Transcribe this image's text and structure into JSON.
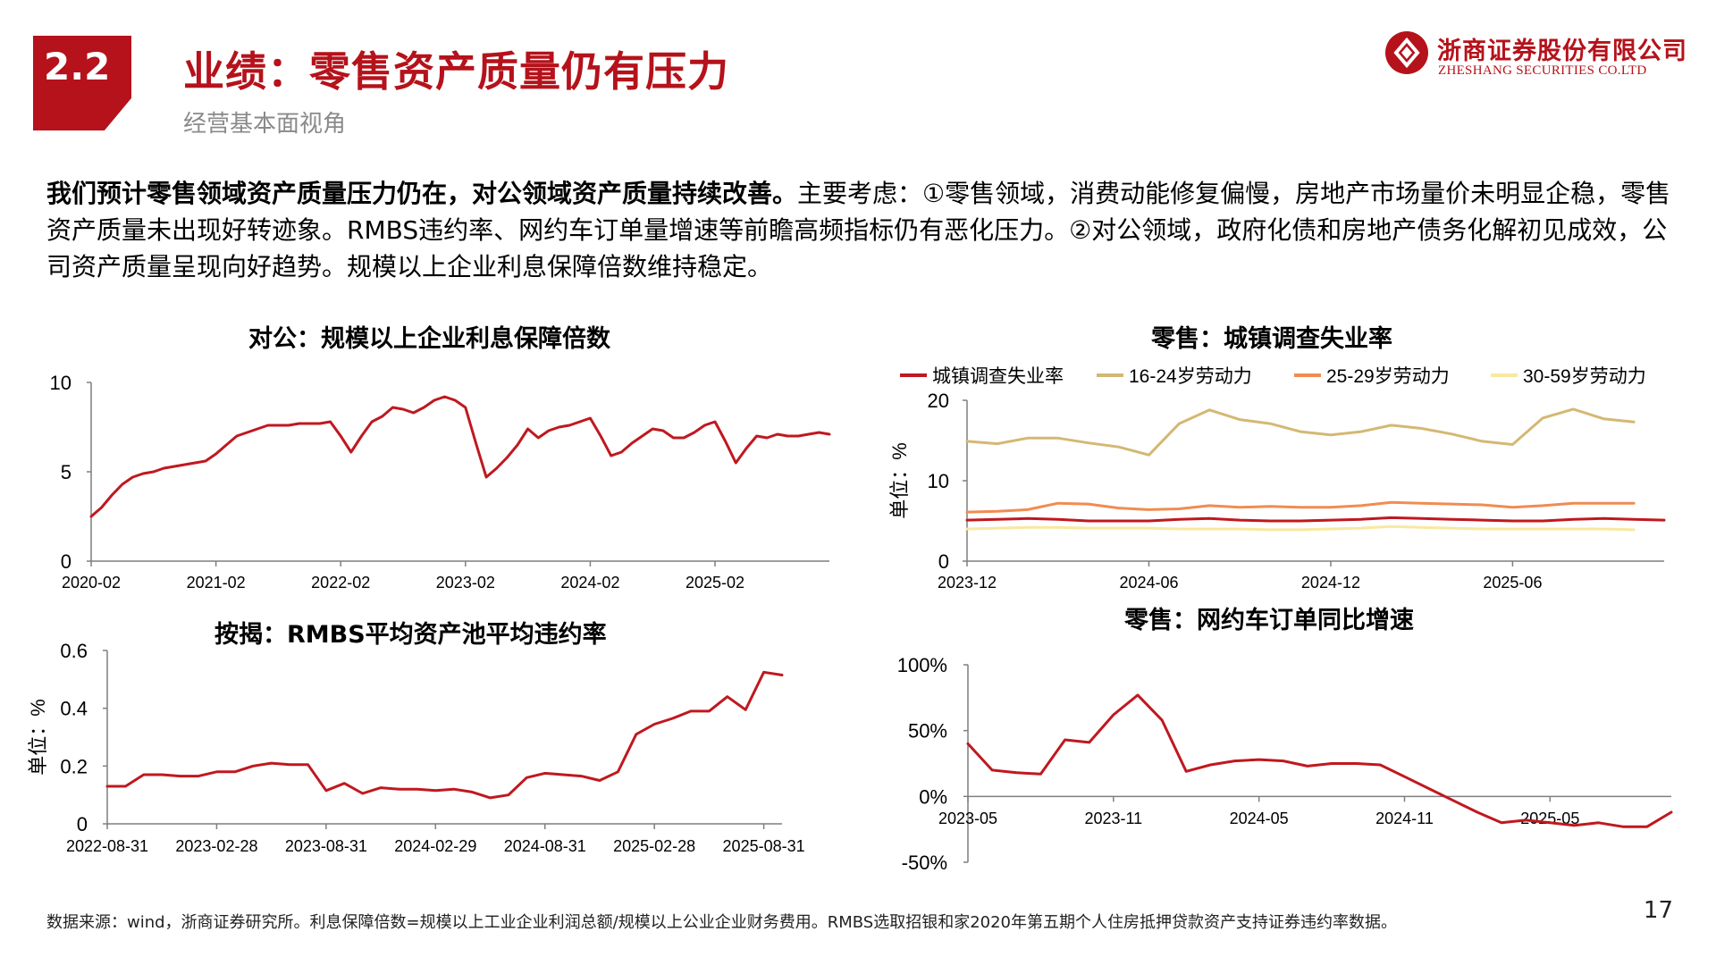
{
  "header": {
    "section_number": "2.2",
    "title": "业绩：零售资产质量仍有压力",
    "subtitle": "经营基本面视角",
    "logo_cn": "浙商证券股份有限公司",
    "logo_en": "ZHESHANG SECURITIES CO.LTD"
  },
  "summary": {
    "bold": "我们预计零售领域资产质量压力仍在，对公领域资产质量持续改善。",
    "text": "主要考虑：①零售领域，消费动能修复偏慢，房地产市场量价未明显企稳，零售资产质量未出现好转迹象。RMBS违约率、网约车订单量增速等前瞻高频指标仍有恶化压力。②对公领域，政府化债和房地产债务化解初见成效，公司资产质量呈现向好趋势。规模以上企业利息保障倍数维持稳定。"
  },
  "footer": {
    "source": "数据来源：wind，浙商证券研究所。利息保障倍数=规模以上工业企业利润总额/规模以上公业企业财务费用。RMBS选取招银和家2020年第五期个人住房抵押贷款资产支持证券违约率数据。",
    "page": "17"
  },
  "colors": {
    "brand_red": "#b5121b",
    "line_red": "#c0181f",
    "tan": "#d4b873",
    "orange": "#f08c52",
    "pale_yellow": "#f8e8a0"
  },
  "chart_data": [
    {
      "id": "interest",
      "type": "line",
      "title": "对公：规模以上企业利息保障倍数",
      "ylim": [
        0,
        10
      ],
      "yticks": [
        "0",
        "5",
        "10"
      ],
      "xticks": [
        "2020-02",
        "2021-02",
        "2022-02",
        "2023-02",
        "2024-02",
        "2025-02"
      ],
      "series": [
        {
          "color": "#c0181f",
          "points": [
            [
              0,
              2.5
            ],
            [
              1,
              3.0
            ],
            [
              2,
              3.7
            ],
            [
              3,
              4.3
            ],
            [
              4,
              4.7
            ],
            [
              5,
              4.9
            ],
            [
              6,
              5.0
            ],
            [
              7,
              5.2
            ],
            [
              8,
              5.3
            ],
            [
              9,
              5.4
            ],
            [
              10,
              5.5
            ],
            [
              11,
              5.6
            ],
            [
              12,
              6.0
            ],
            [
              13,
              6.5
            ],
            [
              14,
              7.0
            ],
            [
              15,
              7.2
            ],
            [
              16,
              7.4
            ],
            [
              17,
              7.6
            ],
            [
              18,
              7.6
            ],
            [
              19,
              7.6
            ],
            [
              20,
              7.7
            ],
            [
              21,
              7.7
            ],
            [
              22,
              7.7
            ],
            [
              23,
              7.8
            ],
            [
              24,
              7.0
            ],
            [
              25,
              6.1
            ],
            [
              26,
              7.0
            ],
            [
              27,
              7.8
            ],
            [
              28,
              8.1
            ],
            [
              29,
              8.6
            ],
            [
              30,
              8.5
            ],
            [
              31,
              8.3
            ],
            [
              32,
              8.6
            ],
            [
              33,
              9.0
            ],
            [
              34,
              9.2
            ],
            [
              35,
              9.0
            ],
            [
              36,
              8.6
            ],
            [
              37,
              6.6
            ],
            [
              38,
              4.7
            ],
            [
              39,
              5.2
            ],
            [
              40,
              5.8
            ],
            [
              41,
              6.5
            ],
            [
              42,
              7.4
            ],
            [
              43,
              6.9
            ],
            [
              44,
              7.3
            ],
            [
              45,
              7.5
            ],
            [
              46,
              7.6
            ],
            [
              47,
              7.8
            ],
            [
              48,
              8.0
            ],
            [
              49,
              7.0
            ],
            [
              50,
              5.9
            ],
            [
              51,
              6.1
            ],
            [
              52,
              6.6
            ],
            [
              53,
              7.0
            ],
            [
              54,
              7.4
            ],
            [
              55,
              7.3
            ],
            [
              56,
              6.9
            ],
            [
              57,
              6.9
            ],
            [
              58,
              7.2
            ],
            [
              59,
              7.6
            ],
            [
              60,
              7.8
            ],
            [
              61,
              6.7
            ],
            [
              62,
              5.5
            ],
            [
              63,
              6.3
            ],
            [
              64,
              7.0
            ],
            [
              65,
              6.9
            ],
            [
              66,
              7.1
            ],
            [
              67,
              7.0
            ],
            [
              68,
              7.0
            ],
            [
              69,
              7.1
            ],
            [
              70,
              7.2
            ],
            [
              71,
              7.1
            ]
          ]
        }
      ]
    },
    {
      "id": "rmbs",
      "type": "line",
      "title": "按揭：RMBS平均资产池平均违约率",
      "ylabel": "单位：%",
      "ylim": [
        0,
        0.6
      ],
      "yticks": [
        "0",
        "0.2",
        "0.4",
        "0.6"
      ],
      "xticks": [
        "2022-08-31",
        "2023-02-28",
        "2023-08-31",
        "2024-02-29",
        "2024-08-31",
        "2025-02-28",
        "2025-08-31"
      ],
      "series": [
        {
          "color": "#c0181f",
          "points": [
            [
              0,
              0.13
            ],
            [
              1,
              0.13
            ],
            [
              2,
              0.17
            ],
            [
              3,
              0.17
            ],
            [
              4,
              0.165
            ],
            [
              5,
              0.165
            ],
            [
              6,
              0.18
            ],
            [
              7,
              0.18
            ],
            [
              8,
              0.2
            ],
            [
              9,
              0.21
            ],
            [
              10,
              0.205
            ],
            [
              11,
              0.205
            ],
            [
              12,
              0.115
            ],
            [
              13,
              0.14
            ],
            [
              14,
              0.105
            ],
            [
              15,
              0.125
            ],
            [
              16,
              0.12
            ],
            [
              17,
              0.12
            ],
            [
              18,
              0.115
            ],
            [
              19,
              0.12
            ],
            [
              20,
              0.11
            ],
            [
              21,
              0.09
            ],
            [
              22,
              0.1
            ],
            [
              23,
              0.16
            ],
            [
              24,
              0.175
            ],
            [
              25,
              0.17
            ],
            [
              26,
              0.165
            ],
            [
              27,
              0.15
            ],
            [
              28,
              0.18
            ],
            [
              29,
              0.31
            ],
            [
              30,
              0.345
            ],
            [
              31,
              0.365
            ],
            [
              32,
              0.39
            ],
            [
              33,
              0.39
            ],
            [
              34,
              0.44
            ],
            [
              35,
              0.395
            ],
            [
              36,
              0.525
            ],
            [
              37,
              0.515
            ]
          ]
        }
      ]
    },
    {
      "id": "unemp",
      "type": "line",
      "title": "零售：城镇调查失业率",
      "ylabel": "单位：%",
      "ylim": [
        0,
        20
      ],
      "yticks": [
        "0",
        "10",
        "20"
      ],
      "xticks": [
        "2023-12",
        "2024-06",
        "2024-12",
        "2025-06"
      ],
      "legend": [
        "城镇调查失业率",
        "16-24岁劳动力",
        "25-29岁劳动力",
        "30-59岁劳动力"
      ],
      "series": [
        {
          "name": "城镇调查失业率",
          "color": "#c0181f",
          "values": [
            5.1,
            5.2,
            5.3,
            5.2,
            5.0,
            5.0,
            5.0,
            5.2,
            5.3,
            5.1,
            5.0,
            5.0,
            5.1,
            5.2,
            5.4,
            5.3,
            5.2,
            5.1,
            5.0,
            5.0,
            5.2,
            5.3,
            5.2,
            5.1
          ]
        },
        {
          "name": "16-24岁劳动力",
          "color": "#d4b873",
          "values": [
            14.9,
            14.6,
            15.3,
            15.3,
            14.7,
            14.2,
            13.2,
            17.1,
            18.8,
            17.6,
            17.1,
            16.1,
            15.7,
            16.1,
            16.9,
            16.5,
            15.8,
            14.9,
            14.5,
            17.8,
            18.9,
            17.7,
            17.3
          ]
        },
        {
          "name": "25-29岁劳动力",
          "color": "#f08c52",
          "values": [
            6.1,
            6.2,
            6.4,
            7.2,
            7.1,
            6.6,
            6.4,
            6.5,
            6.9,
            6.7,
            6.8,
            6.7,
            6.7,
            6.9,
            7.3,
            7.2,
            7.1,
            7.0,
            6.7,
            6.9,
            7.2,
            7.2,
            7.2
          ]
        },
        {
          "name": "30-59岁劳动力",
          "color": "#f8e8a0",
          "values": [
            4.0,
            4.1,
            4.2,
            4.2,
            4.1,
            4.1,
            4.1,
            4.0,
            4.0,
            4.0,
            3.9,
            3.9,
            4.0,
            4.1,
            4.3,
            4.2,
            4.1,
            4.0,
            4.0,
            4.0,
            4.0,
            4.0,
            3.9
          ]
        }
      ]
    },
    {
      "id": "ridehail",
      "type": "line",
      "title": "零售：网约车订单同比增速",
      "ylim": [
        -50,
        100
      ],
      "yticks": [
        "-50%",
        "0%",
        "50%",
        "100%"
      ],
      "xticks": [
        "2023-05",
        "2023-11",
        "2024-05",
        "2024-11",
        "2025-05"
      ],
      "series": [
        {
          "color": "#c0181f",
          "values": [
            40,
            20,
            18,
            17,
            43,
            41,
            62,
            77,
            58,
            19,
            24,
            27,
            28,
            27,
            23,
            25,
            25,
            24,
            15,
            6,
            -3,
            -12,
            -20,
            -18,
            -20,
            -22,
            -20,
            -23,
            -23,
            -12
          ]
        }
      ]
    }
  ]
}
